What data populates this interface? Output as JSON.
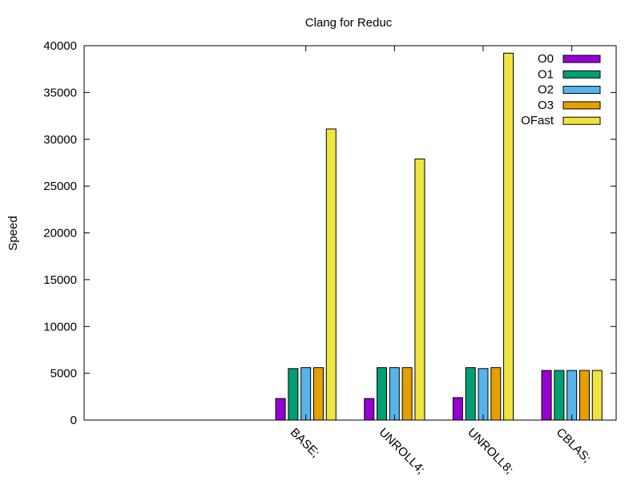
{
  "chart_data": {
    "type": "bar",
    "title": "Clang for Reduc",
    "xlabel": "",
    "ylabel": "Speed",
    "ylim": [
      0,
      40000
    ],
    "yticks": [
      0,
      5000,
      10000,
      15000,
      20000,
      25000,
      30000,
      35000,
      40000
    ],
    "categories": [
      "",
      "",
      "BASE;",
      "UNROLL4;",
      "UNROLL8;",
      "CBLAS;"
    ],
    "series": [
      {
        "name": "O0",
        "color": "#9400d3",
        "values": [
          null,
          null,
          2300,
          2300,
          2400,
          5300
        ]
      },
      {
        "name": "O1",
        "color": "#009e73",
        "values": [
          null,
          null,
          5500,
          5600,
          5600,
          5300
        ]
      },
      {
        "name": "O2",
        "color": "#56b4e9",
        "values": [
          null,
          null,
          5600,
          5600,
          5500,
          5300
        ]
      },
      {
        "name": "O3",
        "color": "#e69f00",
        "values": [
          null,
          null,
          5600,
          5600,
          5600,
          5300
        ]
      },
      {
        "name": "OFast",
        "color": "#f0e442",
        "values": [
          null,
          null,
          31100,
          27900,
          39200,
          5300
        ]
      }
    ],
    "legend_position": "top-right",
    "grid": false
  }
}
